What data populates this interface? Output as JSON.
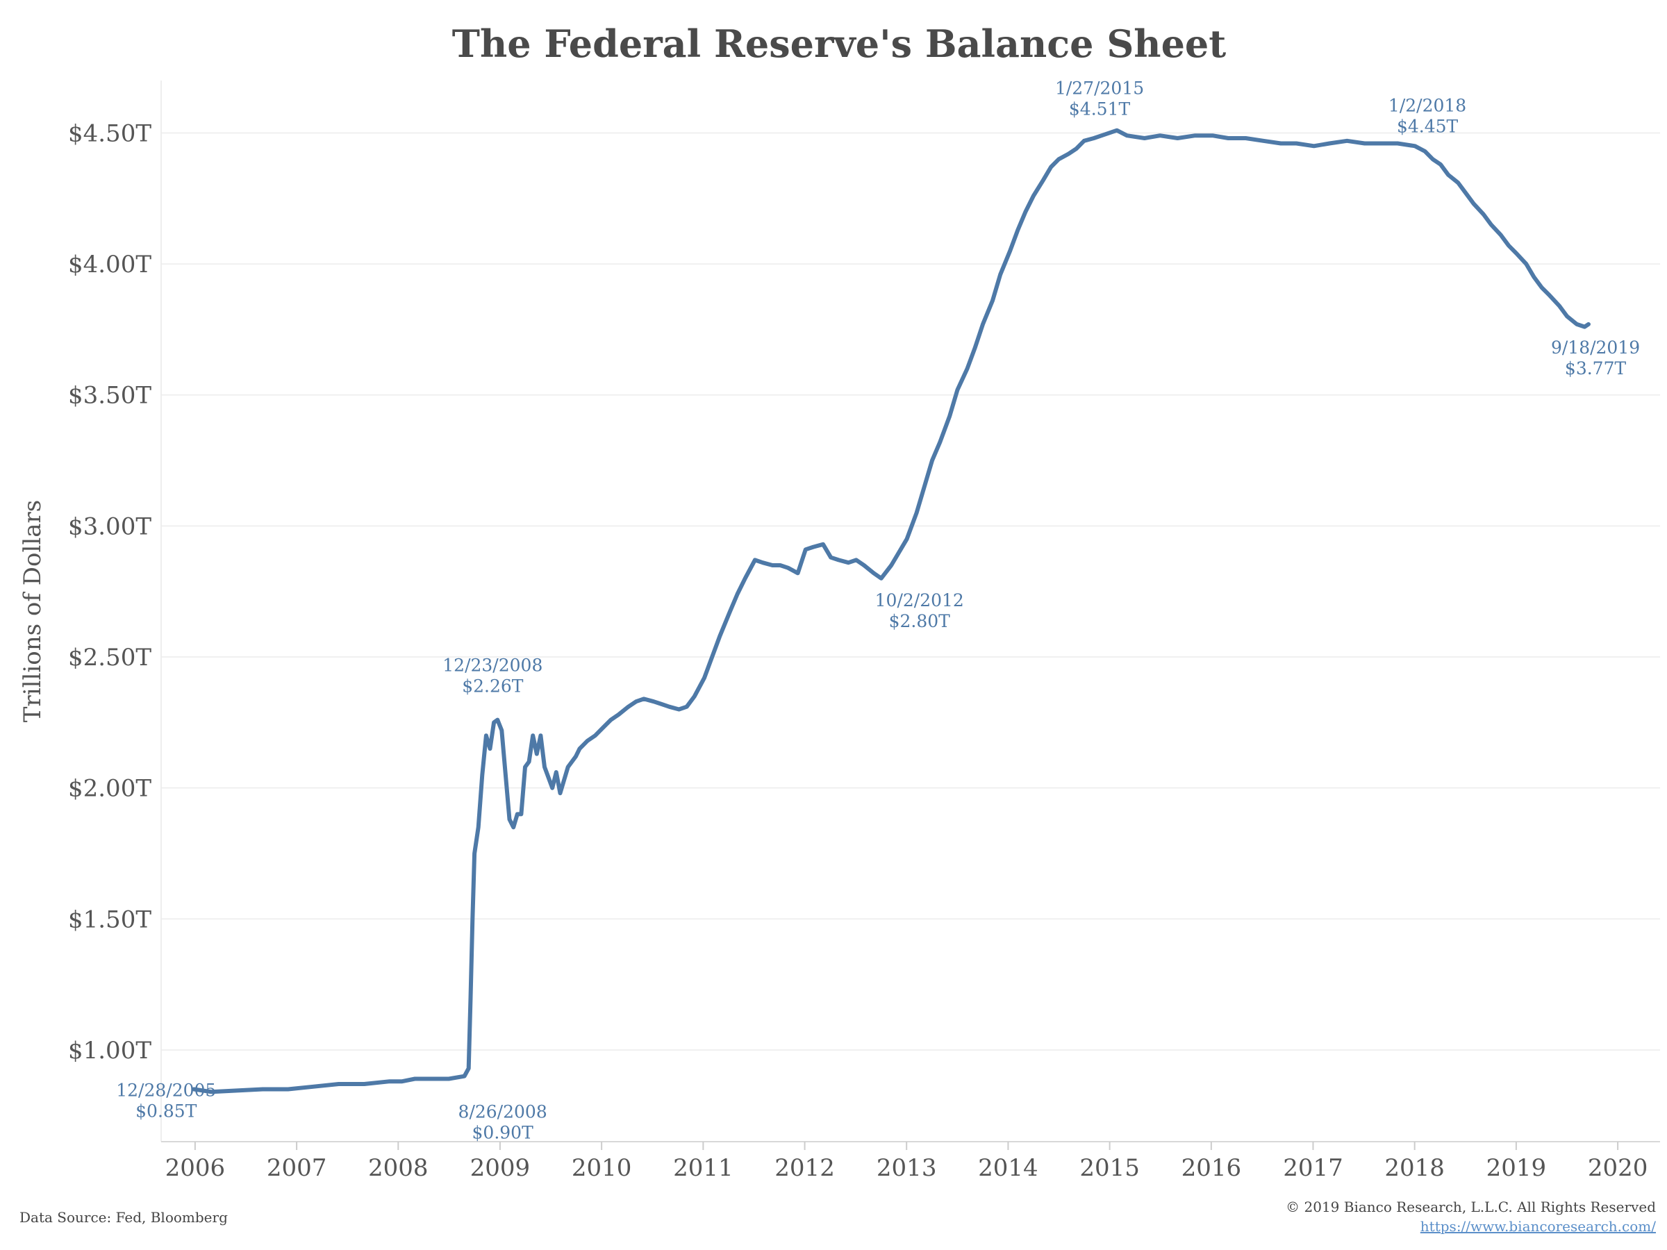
{
  "chart_data": {
    "type": "line",
    "title": "The Federal Reserve's Balance Sheet",
    "ylabel": "Trillions of Dollars",
    "ylim": [
      0.65,
      4.7
    ],
    "xlim": [
      "2005-09-01",
      "2020-06-01"
    ],
    "x_ticks": [
      "2006",
      "2007",
      "2008",
      "2009",
      "2010",
      "2011",
      "2012",
      "2013",
      "2014",
      "2015",
      "2016",
      "2017",
      "2018",
      "2019",
      "2020"
    ],
    "y_ticks": [
      {
        "value": 1.0,
        "label": "$1.00T"
      },
      {
        "value": 1.5,
        "label": "$1.50T"
      },
      {
        "value": 2.0,
        "label": "$2.00T"
      },
      {
        "value": 2.5,
        "label": "$2.50T"
      },
      {
        "value": 3.0,
        "label": "$3.00T"
      },
      {
        "value": 3.5,
        "label": "$3.50T"
      },
      {
        "value": 4.0,
        "label": "$4.00T"
      },
      {
        "value": 4.5,
        "label": "$4.50T"
      }
    ],
    "grid": "horizontal",
    "color": "#4e79a7",
    "series": [
      {
        "points": [
          [
            "2005-12-28",
            0.85
          ],
          [
            "2006-03-01",
            0.84
          ],
          [
            "2006-06-01",
            0.845
          ],
          [
            "2006-09-01",
            0.85
          ],
          [
            "2006-12-01",
            0.85
          ],
          [
            "2007-03-01",
            0.86
          ],
          [
            "2007-06-01",
            0.87
          ],
          [
            "2007-09-01",
            0.87
          ],
          [
            "2007-12-01",
            0.88
          ],
          [
            "2008-01-15",
            0.88
          ],
          [
            "2008-03-01",
            0.89
          ],
          [
            "2008-05-01",
            0.89
          ],
          [
            "2008-07-01",
            0.89
          ],
          [
            "2008-08-26",
            0.9
          ],
          [
            "2008-09-10",
            0.93
          ],
          [
            "2008-09-17",
            1.2
          ],
          [
            "2008-09-24",
            1.5
          ],
          [
            "2008-10-01",
            1.75
          ],
          [
            "2008-10-15",
            1.85
          ],
          [
            "2008-10-29",
            2.05
          ],
          [
            "2008-11-12",
            2.2
          ],
          [
            "2008-11-26",
            2.15
          ],
          [
            "2008-12-10",
            2.25
          ],
          [
            "2008-12-23",
            2.26
          ],
          [
            "2009-01-07",
            2.22
          ],
          [
            "2009-01-21",
            2.05
          ],
          [
            "2009-02-04",
            1.88
          ],
          [
            "2009-02-18",
            1.85
          ],
          [
            "2009-03-04",
            1.9
          ],
          [
            "2009-03-18",
            1.9
          ],
          [
            "2009-04-01",
            2.08
          ],
          [
            "2009-04-15",
            2.1
          ],
          [
            "2009-04-29",
            2.2
          ],
          [
            "2009-05-13",
            2.13
          ],
          [
            "2009-05-27",
            2.2
          ],
          [
            "2009-06-10",
            2.08
          ],
          [
            "2009-06-24",
            2.04
          ],
          [
            "2009-07-08",
            2.0
          ],
          [
            "2009-07-22",
            2.06
          ],
          [
            "2009-08-05",
            1.98
          ],
          [
            "2009-08-19",
            2.03
          ],
          [
            "2009-09-02",
            2.08
          ],
          [
            "2009-09-30",
            2.12
          ],
          [
            "2009-10-14",
            2.15
          ],
          [
            "2009-11-11",
            2.18
          ],
          [
            "2009-12-09",
            2.2
          ],
          [
            "2010-01-06",
            2.23
          ],
          [
            "2010-02-03",
            2.26
          ],
          [
            "2010-03-03",
            2.28
          ],
          [
            "2010-04-07",
            2.31
          ],
          [
            "2010-05-05",
            2.33
          ],
          [
            "2010-06-02",
            2.34
          ],
          [
            "2010-07-07",
            2.33
          ],
          [
            "2010-08-04",
            2.32
          ],
          [
            "2010-09-01",
            2.31
          ],
          [
            "2010-10-06",
            2.3
          ],
          [
            "2010-11-03",
            2.31
          ],
          [
            "2010-12-01",
            2.35
          ],
          [
            "2011-01-05",
            2.42
          ],
          [
            "2011-02-02",
            2.5
          ],
          [
            "2011-03-02",
            2.58
          ],
          [
            "2011-04-06",
            2.67
          ],
          [
            "2011-05-04",
            2.74
          ],
          [
            "2011-06-01",
            2.8
          ],
          [
            "2011-07-06",
            2.87
          ],
          [
            "2011-08-03",
            2.86
          ],
          [
            "2011-09-07",
            2.85
          ],
          [
            "2011-10-05",
            2.85
          ],
          [
            "2011-11-02",
            2.84
          ],
          [
            "2011-12-07",
            2.82
          ],
          [
            "2012-01-04",
            2.91
          ],
          [
            "2012-02-01",
            2.92
          ],
          [
            "2012-03-07",
            2.93
          ],
          [
            "2012-04-04",
            2.88
          ],
          [
            "2012-05-02",
            2.87
          ],
          [
            "2012-06-06",
            2.86
          ],
          [
            "2012-07-04",
            2.87
          ],
          [
            "2012-08-01",
            2.85
          ],
          [
            "2012-09-05",
            2.82
          ],
          [
            "2012-10-02",
            2.8
          ],
          [
            "2012-11-07",
            2.85
          ],
          [
            "2012-12-05",
            2.9
          ],
          [
            "2013-01-02",
            2.95
          ],
          [
            "2013-02-06",
            3.05
          ],
          [
            "2013-03-06",
            3.15
          ],
          [
            "2013-04-03",
            3.25
          ],
          [
            "2013-05-01",
            3.32
          ],
          [
            "2013-06-05",
            3.42
          ],
          [
            "2013-07-03",
            3.52
          ],
          [
            "2013-08-07",
            3.6
          ],
          [
            "2013-09-04",
            3.68
          ],
          [
            "2013-10-02",
            3.77
          ],
          [
            "2013-11-06",
            3.86
          ],
          [
            "2013-12-04",
            3.96
          ],
          [
            "2014-01-08",
            4.05
          ],
          [
            "2014-02-05",
            4.13
          ],
          [
            "2014-03-05",
            4.2
          ],
          [
            "2014-04-02",
            4.26
          ],
          [
            "2014-05-07",
            4.32
          ],
          [
            "2014-06-04",
            4.37
          ],
          [
            "2014-07-02",
            4.4
          ],
          [
            "2014-08-06",
            4.42
          ],
          [
            "2014-09-03",
            4.44
          ],
          [
            "2014-10-01",
            4.47
          ],
          [
            "2014-11-05",
            4.48
          ],
          [
            "2014-12-03",
            4.49
          ],
          [
            "2015-01-27",
            4.51
          ],
          [
            "2015-03-04",
            4.49
          ],
          [
            "2015-05-06",
            4.48
          ],
          [
            "2015-07-01",
            4.49
          ],
          [
            "2015-09-02",
            4.48
          ],
          [
            "2015-11-04",
            4.49
          ],
          [
            "2016-01-06",
            4.49
          ],
          [
            "2016-03-02",
            4.48
          ],
          [
            "2016-05-04",
            4.48
          ],
          [
            "2016-07-06",
            4.47
          ],
          [
            "2016-09-07",
            4.46
          ],
          [
            "2016-11-02",
            4.46
          ],
          [
            "2017-01-04",
            4.45
          ],
          [
            "2017-03-01",
            4.46
          ],
          [
            "2017-05-03",
            4.47
          ],
          [
            "2017-07-05",
            4.46
          ],
          [
            "2017-09-06",
            4.46
          ],
          [
            "2017-11-01",
            4.46
          ],
          [
            "2018-01-02",
            4.45
          ],
          [
            "2018-02-07",
            4.43
          ],
          [
            "2018-03-07",
            4.4
          ],
          [
            "2018-04-04",
            4.38
          ],
          [
            "2018-05-02",
            4.34
          ],
          [
            "2018-06-06",
            4.31
          ],
          [
            "2018-07-04",
            4.27
          ],
          [
            "2018-08-01",
            4.23
          ],
          [
            "2018-09-05",
            4.19
          ],
          [
            "2018-10-03",
            4.15
          ],
          [
            "2018-11-07",
            4.11
          ],
          [
            "2018-12-05",
            4.07
          ],
          [
            "2019-01-02",
            4.04
          ],
          [
            "2019-02-06",
            4.0
          ],
          [
            "2019-03-06",
            3.95
          ],
          [
            "2019-04-03",
            3.91
          ],
          [
            "2019-05-01",
            3.88
          ],
          [
            "2019-06-05",
            3.84
          ],
          [
            "2019-07-03",
            3.8
          ],
          [
            "2019-08-07",
            3.77
          ],
          [
            "2019-09-04",
            3.76
          ],
          [
            "2019-09-18",
            3.77
          ]
        ]
      }
    ],
    "annotations": [
      {
        "id": "start",
        "date": "2005-12-28",
        "value": 0.85,
        "date_label": "12/28/2005",
        "value_label": "$0.85T"
      },
      {
        "id": "pre-crisis",
        "date": "2008-08-26",
        "value": 0.9,
        "date_label": "8/26/2008",
        "value_label": "$0.90T"
      },
      {
        "id": "crisis-peak",
        "date": "2008-12-23",
        "value": 2.26,
        "date_label": "12/23/2008",
        "value_label": "$2.26T"
      },
      {
        "id": "trough-2012",
        "date": "2012-10-02",
        "value": 2.8,
        "date_label": "10/2/2012",
        "value_label": "$2.80T"
      },
      {
        "id": "peak-2015",
        "date": "2015-01-27",
        "value": 4.51,
        "date_label": "1/27/2015",
        "value_label": "$4.51T"
      },
      {
        "id": "start-2018",
        "date": "2018-01-02",
        "value": 4.45,
        "date_label": "1/2/2018",
        "value_label": "$4.45T"
      },
      {
        "id": "latest",
        "date": "2019-09-18",
        "value": 3.77,
        "date_label": "9/18/2019",
        "value_label": "$3.77T"
      }
    ]
  },
  "footer": {
    "source": "Data Source: Fed, Bloomberg",
    "copyright": "© 2019 Bianco Research, L.L.C. All Rights Reserved",
    "website": "https://www.biancoresearch.com/"
  }
}
